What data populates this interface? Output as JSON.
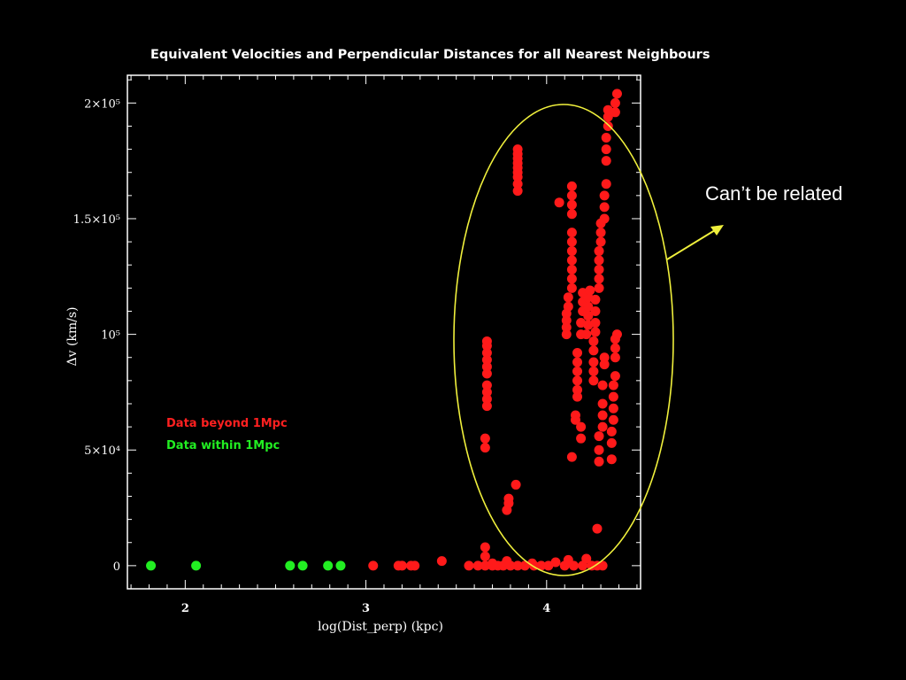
{
  "chart_data": {
    "type": "scatter",
    "title": "Equivalent Velocities and Perpendicular Distances for all Nearest Neighbours",
    "xlabel": "log(Dist_perp) (kpc)",
    "ylabel": "Δv (km/s)",
    "xlim": [
      1.68,
      4.52
    ],
    "ylim": [
      -10000,
      212000
    ],
    "x_ticks": [
      {
        "value": 2,
        "label": "2"
      },
      {
        "value": 3,
        "label": "3"
      },
      {
        "value": 4,
        "label": "4"
      }
    ],
    "y_ticks": [
      {
        "value": 0,
        "label": "0"
      },
      {
        "value": 50000,
        "label": "5×10⁴"
      },
      {
        "value": 100000,
        "label": "10⁵"
      },
      {
        "value": 150000,
        "label": "1.5×10⁵"
      },
      {
        "value": 200000,
        "label": "2×10⁵"
      }
    ],
    "legend_position": "left-middle",
    "annotation": "Can’t be related",
    "series": [
      {
        "name": "Data beyond 1Mpc",
        "color": "#ff1a1a",
        "points": [
          [
            3.04,
            0
          ],
          [
            3.18,
            0
          ],
          [
            3.2,
            0
          ],
          [
            3.25,
            0
          ],
          [
            3.27,
            0
          ],
          [
            3.42,
            2000
          ],
          [
            3.57,
            0
          ],
          [
            3.62,
            0
          ],
          [
            3.66,
            0
          ],
          [
            3.7,
            0
          ],
          [
            3.73,
            0
          ],
          [
            3.76,
            0
          ],
          [
            3.8,
            0
          ],
          [
            3.84,
            0
          ],
          [
            3.88,
            0
          ],
          [
            3.93,
            0
          ],
          [
            3.97,
            0
          ],
          [
            4.01,
            0
          ],
          [
            4.05,
            1500
          ],
          [
            4.1,
            0
          ],
          [
            4.15,
            0
          ],
          [
            4.2,
            0
          ],
          [
            4.25,
            0
          ],
          [
            4.28,
            0
          ],
          [
            4.31,
            0
          ],
          [
            3.78,
            2000
          ],
          [
            3.92,
            1000
          ],
          [
            4.12,
            2500
          ],
          [
            4.22,
            3000
          ],
          [
            3.66,
            4000
          ],
          [
            3.66,
            8000
          ],
          [
            3.7,
            1000
          ],
          [
            3.66,
            51000
          ],
          [
            3.66,
            55000
          ],
          [
            3.67,
            69000
          ],
          [
            3.67,
            72000
          ],
          [
            3.67,
            75000
          ],
          [
            3.67,
            78000
          ],
          [
            3.67,
            83000
          ],
          [
            3.67,
            86000
          ],
          [
            3.67,
            89000
          ],
          [
            3.67,
            92000
          ],
          [
            3.67,
            95000
          ],
          [
            3.67,
            97000
          ],
          [
            3.78,
            24000
          ],
          [
            3.79,
            27000
          ],
          [
            3.79,
            29000
          ],
          [
            3.83,
            35000
          ],
          [
            3.84,
            162000
          ],
          [
            3.84,
            165000
          ],
          [
            3.84,
            168000
          ],
          [
            3.84,
            170000
          ],
          [
            3.84,
            172000
          ],
          [
            3.84,
            174000
          ],
          [
            3.84,
            176000
          ],
          [
            3.84,
            178000
          ],
          [
            3.84,
            180000
          ],
          [
            4.07,
            157000
          ],
          [
            4.11,
            100000
          ],
          [
            4.11,
            103000
          ],
          [
            4.11,
            106000
          ],
          [
            4.11,
            109000
          ],
          [
            4.12,
            112000
          ],
          [
            4.12,
            116000
          ],
          [
            4.14,
            47000
          ],
          [
            4.14,
            120000
          ],
          [
            4.14,
            124000
          ],
          [
            4.14,
            128000
          ],
          [
            4.14,
            132000
          ],
          [
            4.14,
            136000
          ],
          [
            4.14,
            140000
          ],
          [
            4.14,
            144000
          ],
          [
            4.14,
            152000
          ],
          [
            4.14,
            156000
          ],
          [
            4.14,
            160000
          ],
          [
            4.14,
            164000
          ],
          [
            4.16,
            63000
          ],
          [
            4.16,
            65000
          ],
          [
            4.17,
            73000
          ],
          [
            4.17,
            76000
          ],
          [
            4.17,
            80000
          ],
          [
            4.17,
            84000
          ],
          [
            4.17,
            88000
          ],
          [
            4.17,
            92000
          ],
          [
            4.19,
            55000
          ],
          [
            4.19,
            60000
          ],
          [
            4.19,
            100000
          ],
          [
            4.19,
            105000
          ],
          [
            4.2,
            110000
          ],
          [
            4.2,
            114000
          ],
          [
            4.2,
            118000
          ],
          [
            4.22,
            100000
          ],
          [
            4.23,
            104000
          ],
          [
            4.23,
            108000
          ],
          [
            4.23,
            112000
          ],
          [
            4.23,
            116000
          ],
          [
            4.24,
            119000
          ],
          [
            4.26,
            80000
          ],
          [
            4.26,
            84000
          ],
          [
            4.26,
            88000
          ],
          [
            4.26,
            93000
          ],
          [
            4.26,
            97000
          ],
          [
            4.27,
            101000
          ],
          [
            4.27,
            105000
          ],
          [
            4.27,
            110000
          ],
          [
            4.27,
            115000
          ],
          [
            4.28,
            16000
          ],
          [
            4.29,
            45000
          ],
          [
            4.29,
            50000
          ],
          [
            4.29,
            56000
          ],
          [
            4.29,
            120000
          ],
          [
            4.29,
            124000
          ],
          [
            4.29,
            128000
          ],
          [
            4.29,
            132000
          ],
          [
            4.29,
            136000
          ],
          [
            4.3,
            140000
          ],
          [
            4.3,
            144000
          ],
          [
            4.3,
            148000
          ],
          [
            4.31,
            60000
          ],
          [
            4.31,
            65000
          ],
          [
            4.31,
            70000
          ],
          [
            4.31,
            78000
          ],
          [
            4.32,
            87000
          ],
          [
            4.32,
            90000
          ],
          [
            4.32,
            150000
          ],
          [
            4.32,
            155000
          ],
          [
            4.32,
            160000
          ],
          [
            4.33,
            165000
          ],
          [
            4.33,
            175000
          ],
          [
            4.33,
            180000
          ],
          [
            4.33,
            185000
          ],
          [
            4.34,
            190000
          ],
          [
            4.34,
            194000
          ],
          [
            4.34,
            197000
          ],
          [
            4.36,
            46000
          ],
          [
            4.36,
            53000
          ],
          [
            4.36,
            58000
          ],
          [
            4.37,
            63000
          ],
          [
            4.37,
            68000
          ],
          [
            4.37,
            73000
          ],
          [
            4.37,
            78000
          ],
          [
            4.38,
            82000
          ],
          [
            4.38,
            90000
          ],
          [
            4.38,
            94000
          ],
          [
            4.38,
            98000
          ],
          [
            4.39,
            100000
          ],
          [
            4.38,
            196000
          ],
          [
            4.38,
            200000
          ],
          [
            4.39,
            204000
          ]
        ]
      },
      {
        "name": "Data within 1Mpc",
        "color": "#22ee22",
        "points": [
          [
            1.81,
            0
          ],
          [
            2.06,
            0
          ],
          [
            2.58,
            0
          ],
          [
            2.65,
            0
          ],
          [
            2.79,
            0
          ],
          [
            2.86,
            0
          ]
        ]
      }
    ]
  }
}
